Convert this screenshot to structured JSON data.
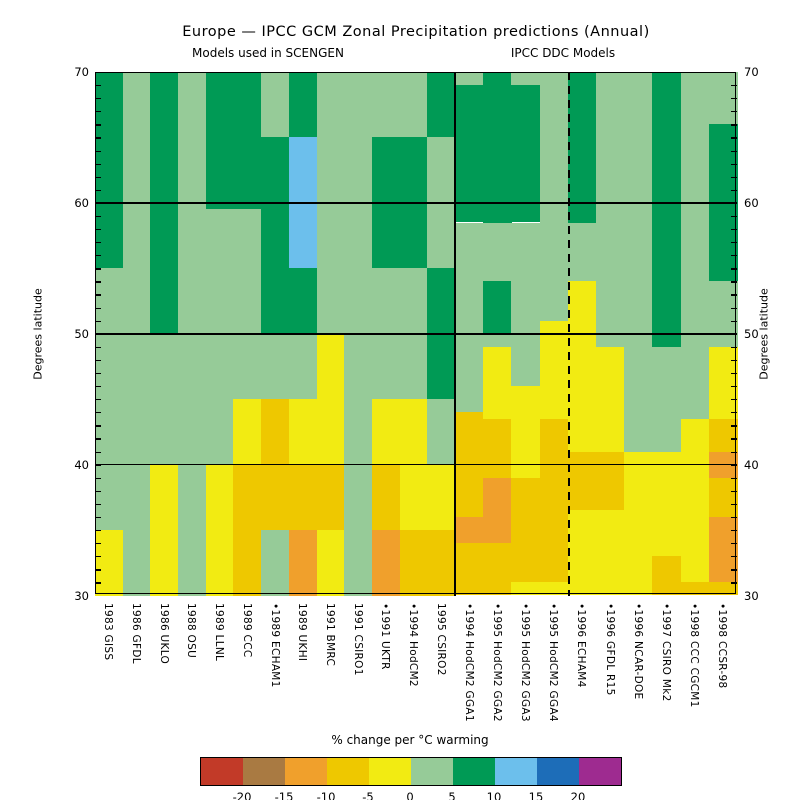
{
  "title": "Europe — IPCC GCM Zonal Precipitation predictions   (Annual)",
  "subtitle_left": "Models used in SCENGEN",
  "subtitle_right": "IPCC DDC Models",
  "y_axis_label_left": "Degrees latitude",
  "y_axis_label_right": "Degrees latitude",
  "y_ticks": [
    30,
    40,
    50,
    60,
    70
  ],
  "legend": {
    "title": "% change per °C warming",
    "tick_labels": [
      "-20",
      "-15",
      "-10",
      "-5",
      "0",
      "5",
      "10",
      "15",
      "20"
    ],
    "colors": [
      "#c23a28",
      "#a97a42",
      "#f0a02c",
      "#eec800",
      "#f2eb12",
      "#96cb98",
      "#009a55",
      "#6cbfec",
      "#1d6db8",
      "#9e2b90"
    ]
  },
  "chart_data": {
    "type": "heatmap",
    "ylabel": "Degrees latitude",
    "lat_range": [
      30,
      70
    ],
    "gridline_lats": [
      40,
      50,
      60
    ],
    "panels": [
      {
        "name": "SCENGEN",
        "columns": 13
      },
      {
        "name": "IPCC DDC",
        "columns": 10
      }
    ],
    "dashed_divider_after_column": 17,
    "color_key": {
      "g": {
        "hex": "#96cb98",
        "meaning": "0 to +5 % per °C"
      },
      "G": {
        "hex": "#009a55",
        "meaning": "+5 to +10 % per °C"
      },
      "B": {
        "hex": "#6cbfec",
        "meaning": "+10 to +15 % per °C"
      },
      "Y": {
        "hex": "#f2eb12",
        "meaning": "-5 to 0 % per °C"
      },
      "y": {
        "hex": "#eec800",
        "meaning": "-10 to -5 % per °C"
      },
      "O": {
        "hex": "#f0a02c",
        "meaning": "-15 to -10 % per °C"
      }
    },
    "columns": [
      {
        "label": "1983 GISS",
        "panel": "SCENGEN",
        "segments": [
          [
            70,
            "G"
          ],
          [
            55,
            "g"
          ],
          [
            35,
            "Y"
          ]
        ]
      },
      {
        "label": "1986 GFDL",
        "panel": "SCENGEN",
        "segments": [
          [
            70,
            "g"
          ]
        ]
      },
      {
        "label": "1986 UKLO",
        "panel": "SCENGEN",
        "segments": [
          [
            70,
            "G"
          ],
          [
            50,
            "g"
          ],
          [
            40,
            "Y"
          ]
        ]
      },
      {
        "label": "1988 OSU",
        "panel": "SCENGEN",
        "segments": [
          [
            70,
            "g"
          ]
        ]
      },
      {
        "label": "1989 LLNL",
        "panel": "SCENGEN",
        "segments": [
          [
            70,
            "G"
          ],
          [
            59.5,
            "g"
          ],
          [
            40,
            "Y"
          ]
        ]
      },
      {
        "label": "1989 CCC",
        "panel": "SCENGEN",
        "segments": [
          [
            70,
            "G"
          ],
          [
            59.5,
            "g"
          ],
          [
            45,
            "Y"
          ],
          [
            40,
            "y"
          ]
        ]
      },
      {
        "label": "•1989 ECHAM1",
        "panel": "SCENGEN",
        "segments": [
          [
            70,
            "g"
          ],
          [
            65,
            "G"
          ],
          [
            50,
            "g"
          ],
          [
            45,
            "y"
          ],
          [
            35,
            "g"
          ]
        ]
      },
      {
        "label": "1989 UKHI",
        "panel": "SCENGEN",
        "segments": [
          [
            70,
            "G"
          ],
          [
            65,
            "B"
          ],
          [
            55,
            "G"
          ],
          [
            50,
            "g"
          ],
          [
            45,
            "Y"
          ],
          [
            40,
            "y"
          ],
          [
            35,
            "O"
          ]
        ]
      },
      {
        "label": "1991 BMRC",
        "panel": "SCENGEN",
        "segments": [
          [
            70,
            "g"
          ],
          [
            50,
            "Y"
          ],
          [
            40,
            "y"
          ],
          [
            35,
            "Y"
          ]
        ]
      },
      {
        "label": "1991 CSIRO1",
        "panel": "SCENGEN",
        "segments": [
          [
            70,
            "g"
          ]
        ]
      },
      {
        "label": "•1991 UKTR",
        "panel": "SCENGEN",
        "segments": [
          [
            70,
            "g"
          ],
          [
            65,
            "G"
          ],
          [
            55,
            "g"
          ],
          [
            45,
            "Y"
          ],
          [
            40,
            "y"
          ],
          [
            35,
            "O"
          ]
        ]
      },
      {
        "label": "•1994 HodCM2",
        "panel": "SCENGEN",
        "segments": [
          [
            70,
            "g"
          ],
          [
            65,
            "G"
          ],
          [
            55,
            "g"
          ],
          [
            45,
            "Y"
          ],
          [
            35,
            "y"
          ]
        ]
      },
      {
        "label": "1995 CSIRO2",
        "panel": "SCENGEN",
        "segments": [
          [
            70,
            "G"
          ],
          [
            65,
            "g"
          ],
          [
            55,
            "G"
          ],
          [
            45,
            "g"
          ],
          [
            40,
            "Y"
          ],
          [
            35,
            "y"
          ]
        ]
      },
      {
        "label": "•1994 HodCM2 GGA1",
        "panel": "IPCC DDC",
        "segments": [
          [
            70,
            "g"
          ],
          [
            69,
            "G"
          ],
          [
            58.5,
            "g"
          ],
          [
            44,
            "y"
          ],
          [
            36,
            "O"
          ],
          [
            34,
            "y"
          ]
        ]
      },
      {
        "label": "•1995 HodCM2 GGA2",
        "panel": "IPCC DDC",
        "segments": [
          [
            70,
            "G"
          ],
          [
            58.5,
            "g"
          ],
          [
            54,
            "G"
          ],
          [
            50,
            "g"
          ],
          [
            49,
            "Y"
          ],
          [
            43.5,
            "y"
          ],
          [
            39,
            "O"
          ],
          [
            34,
            "y"
          ]
        ]
      },
      {
        "label": "•1995 HodCM2 GGA3",
        "panel": "IPCC DDC",
        "segments": [
          [
            70,
            "g"
          ],
          [
            69,
            "G"
          ],
          [
            58.5,
            "g"
          ],
          [
            46,
            "Y"
          ],
          [
            39,
            "y"
          ],
          [
            31,
            "Y"
          ]
        ]
      },
      {
        "label": "•1995 HodCM2 GGA4",
        "panel": "IPCC DDC",
        "segments": [
          [
            70,
            "g"
          ],
          [
            51,
            "Y"
          ],
          [
            43.5,
            "y"
          ],
          [
            31,
            "Y"
          ]
        ]
      },
      {
        "label": "•1996 ECHAM4",
        "panel": "IPCC DDC",
        "segments": [
          [
            70,
            "G"
          ],
          [
            58.5,
            "g"
          ],
          [
            54,
            "Y"
          ],
          [
            41,
            "y"
          ],
          [
            36.5,
            "Y"
          ]
        ]
      },
      {
        "label": "•1996 GFDL R15",
        "panel": "IPCC DDC",
        "segments": [
          [
            70,
            "g"
          ],
          [
            49,
            "Y"
          ],
          [
            41,
            "y"
          ],
          [
            36.5,
            "Y"
          ]
        ]
      },
      {
        "label": "•1996 NCAR-DOE",
        "panel": "IPCC DDC",
        "segments": [
          [
            70,
            "g"
          ],
          [
            41,
            "Y"
          ]
        ]
      },
      {
        "label": "•1997 CSIRO Mk2",
        "panel": "IPCC DDC",
        "segments": [
          [
            70,
            "G"
          ],
          [
            49,
            "g"
          ],
          [
            41,
            "Y"
          ],
          [
            33,
            "y"
          ]
        ]
      },
      {
        "label": "•1998 CCC CGCM1",
        "panel": "IPCC DDC",
        "segments": [
          [
            70,
            "g"
          ],
          [
            43.5,
            "Y"
          ],
          [
            31,
            "y"
          ]
        ]
      },
      {
        "label": "•1998 CCSR-98",
        "panel": "IPCC DDC",
        "segments": [
          [
            70,
            "g"
          ],
          [
            66,
            "G"
          ],
          [
            54,
            "g"
          ],
          [
            49,
            "Y"
          ],
          [
            43.5,
            "y"
          ],
          [
            41,
            "O"
          ],
          [
            39,
            "y"
          ],
          [
            36,
            "O"
          ],
          [
            31,
            "y"
          ]
        ]
      }
    ]
  }
}
